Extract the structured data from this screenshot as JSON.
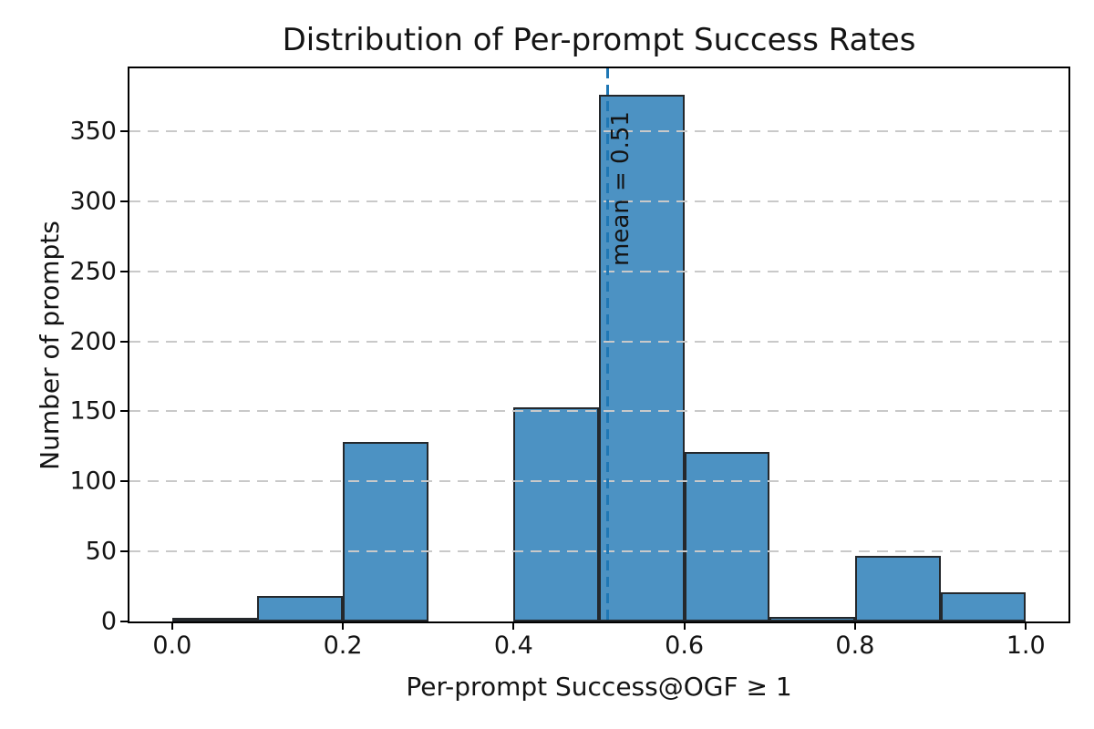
{
  "chart_data": {
    "type": "bar",
    "subtype": "histogram",
    "title": "Distribution of Per-prompt Success Rates",
    "xlabel": "Per-prompt Success@OGF ≥ 1",
    "ylabel": "Number of prompts",
    "bin_edges": [
      0.0,
      0.1,
      0.2,
      0.3,
      0.4,
      0.5,
      0.6,
      0.7,
      0.8,
      0.9,
      1.0
    ],
    "counts": [
      2,
      18,
      128,
      0,
      153,
      376,
      121,
      3,
      47,
      21
    ],
    "mean": 0.51,
    "mean_line_label": "mean = 0.51",
    "xticks": [
      0.0,
      0.2,
      0.4,
      0.6,
      0.8,
      1.0
    ],
    "xtick_labels": [
      "0.0",
      "0.2",
      "0.4",
      "0.6",
      "0.8",
      "1.0"
    ],
    "yticks": [
      0,
      50,
      100,
      150,
      200,
      250,
      300,
      350
    ],
    "ytick_labels": [
      "0",
      "50",
      "100",
      "150",
      "200",
      "250",
      "300",
      "350"
    ],
    "xlim": [
      -0.05,
      1.05
    ],
    "ylim": [
      0,
      395
    ],
    "grid": {
      "axis": "y",
      "style": "dashed",
      "on": true
    },
    "legend": {
      "visible": false
    },
    "colors": {
      "bar_fill": "#4C92C3",
      "bar_edge": "#24282c",
      "mean_line": "#1f77b4",
      "gridline": "#c9c9c9",
      "frame": "#000000",
      "text": "#141414"
    }
  }
}
